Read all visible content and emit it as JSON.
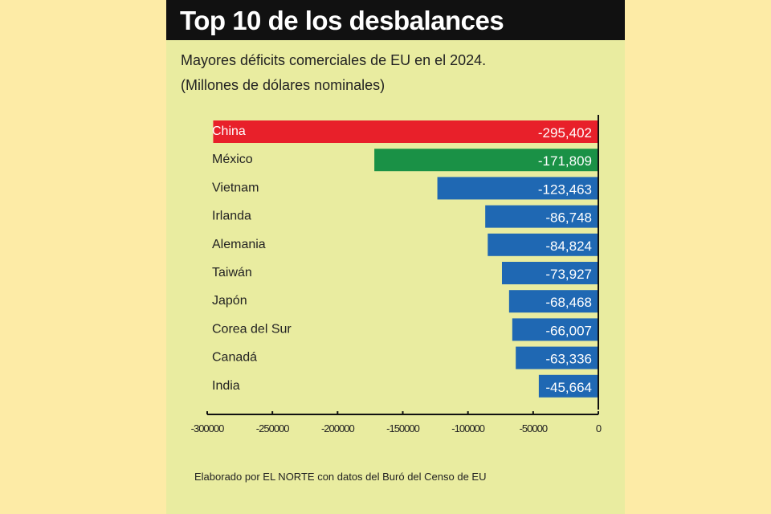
{
  "title": "Top 10 de los desbalances",
  "subtitle": "Mayores déficits comerciales de EU en el 2024.",
  "subtitle2": "(Millones de dólares nominales)",
  "source": "Elaborado por EL NORTE con datos del Buró del Censo de EU",
  "chart_data": {
    "type": "bar",
    "orientation": "horizontal",
    "categories": [
      "China",
      "México",
      "Vietnam",
      "Irlanda",
      "Alemania",
      "Taiwán",
      "Japón",
      "Corea del Sur",
      "Canadá",
      "India"
    ],
    "values": [
      -295402,
      -171809,
      -123463,
      -86748,
      -84824,
      -73927,
      -68468,
      -66007,
      -63336,
      -45664
    ],
    "value_labels": [
      "-295,402",
      "-171,809",
      "-123,463",
      "-86,748",
      "-84,824",
      "-73,927",
      "-68,468",
      "-66,007",
      "-63,336",
      "-45,664"
    ],
    "colors": [
      "#e8202a",
      "#1a9146",
      "#1f68b3",
      "#1f68b3",
      "#1f68b3",
      "#1f68b3",
      "#1f68b3",
      "#1f68b3",
      "#1f68b3",
      "#1f68b3"
    ],
    "xlim": [
      -300000,
      0
    ],
    "xticks": [
      -300000,
      -250000,
      -200000,
      -150000,
      -100000,
      -50000,
      0
    ],
    "xtick_labels": [
      "-300000",
      "-250000",
      "-200000",
      "-150000",
      "-100000",
      "-50000",
      "0"
    ],
    "grid": false
  }
}
